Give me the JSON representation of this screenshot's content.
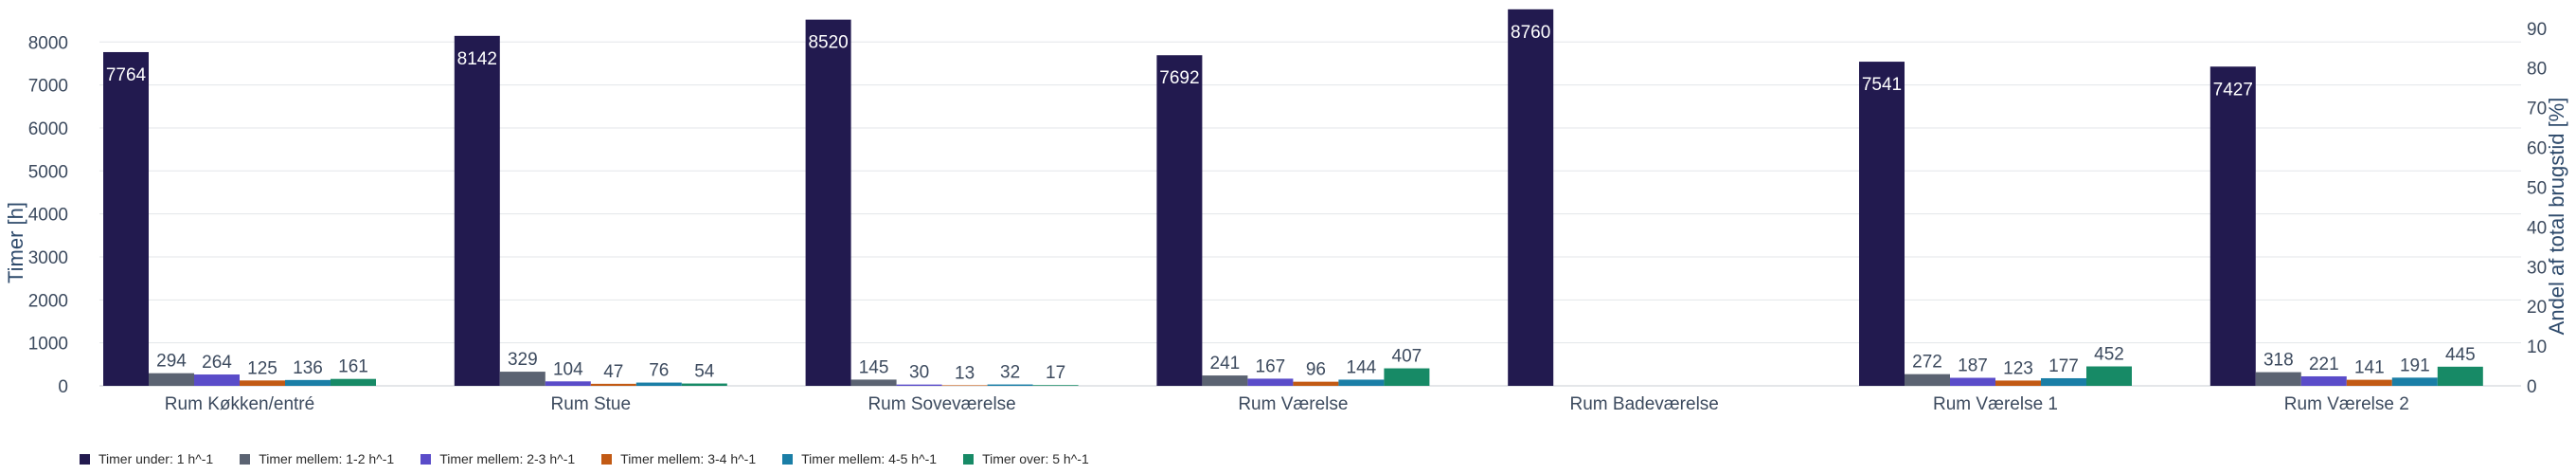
{
  "chart_data": {
    "type": "bar",
    "categories": [
      "Rum Køkken/entré",
      "Rum Stue",
      "Rum Soveværelse",
      "Rum Værelse",
      "Rum Badeværelse",
      "Rum Værelse 1",
      "Rum Værelse 2"
    ],
    "series": [
      {
        "name": "Timer under: 1 h^-1",
        "color": "#221a4f",
        "values": [
          7764,
          8142,
          8520,
          7692,
          8760,
          7541,
          7427
        ]
      },
      {
        "name": "Timer mellem: 1-2 h^-1",
        "color": "#5b6372",
        "values": [
          294,
          329,
          145,
          241,
          0,
          272,
          318
        ]
      },
      {
        "name": "Timer mellem: 2-3 h^-1",
        "color": "#5a4cc9",
        "values": [
          264,
          104,
          30,
          167,
          0,
          187,
          221
        ]
      },
      {
        "name": "Timer mellem: 3-4 h^-1",
        "color": "#c25a14",
        "values": [
          125,
          47,
          13,
          96,
          0,
          123,
          141
        ]
      },
      {
        "name": "Timer mellem: 4-5 h^-1",
        "color": "#1a7ea6",
        "values": [
          136,
          76,
          32,
          144,
          0,
          177,
          191
        ]
      },
      {
        "name": "Timer over: 5 h^-1",
        "color": "#178a66",
        "values": [
          161,
          54,
          17,
          407,
          0,
          452,
          445
        ]
      }
    ],
    "ylabel": "Timer [h]",
    "y2label": "Andel af total brugstid [%]",
    "ylim": [
      0,
      8800
    ],
    "yticks": [
      "0",
      "1000",
      "2000",
      "3000",
      "4000",
      "5000",
      "6000",
      "7000",
      "8000"
    ],
    "y2lim": [
      0,
      95.2
    ],
    "y2ticks": [
      "0",
      "10",
      "20",
      "30",
      "40",
      "50",
      "60",
      "70",
      "80",
      "90"
    ],
    "grid": true,
    "legend_position": "bottom-left"
  }
}
